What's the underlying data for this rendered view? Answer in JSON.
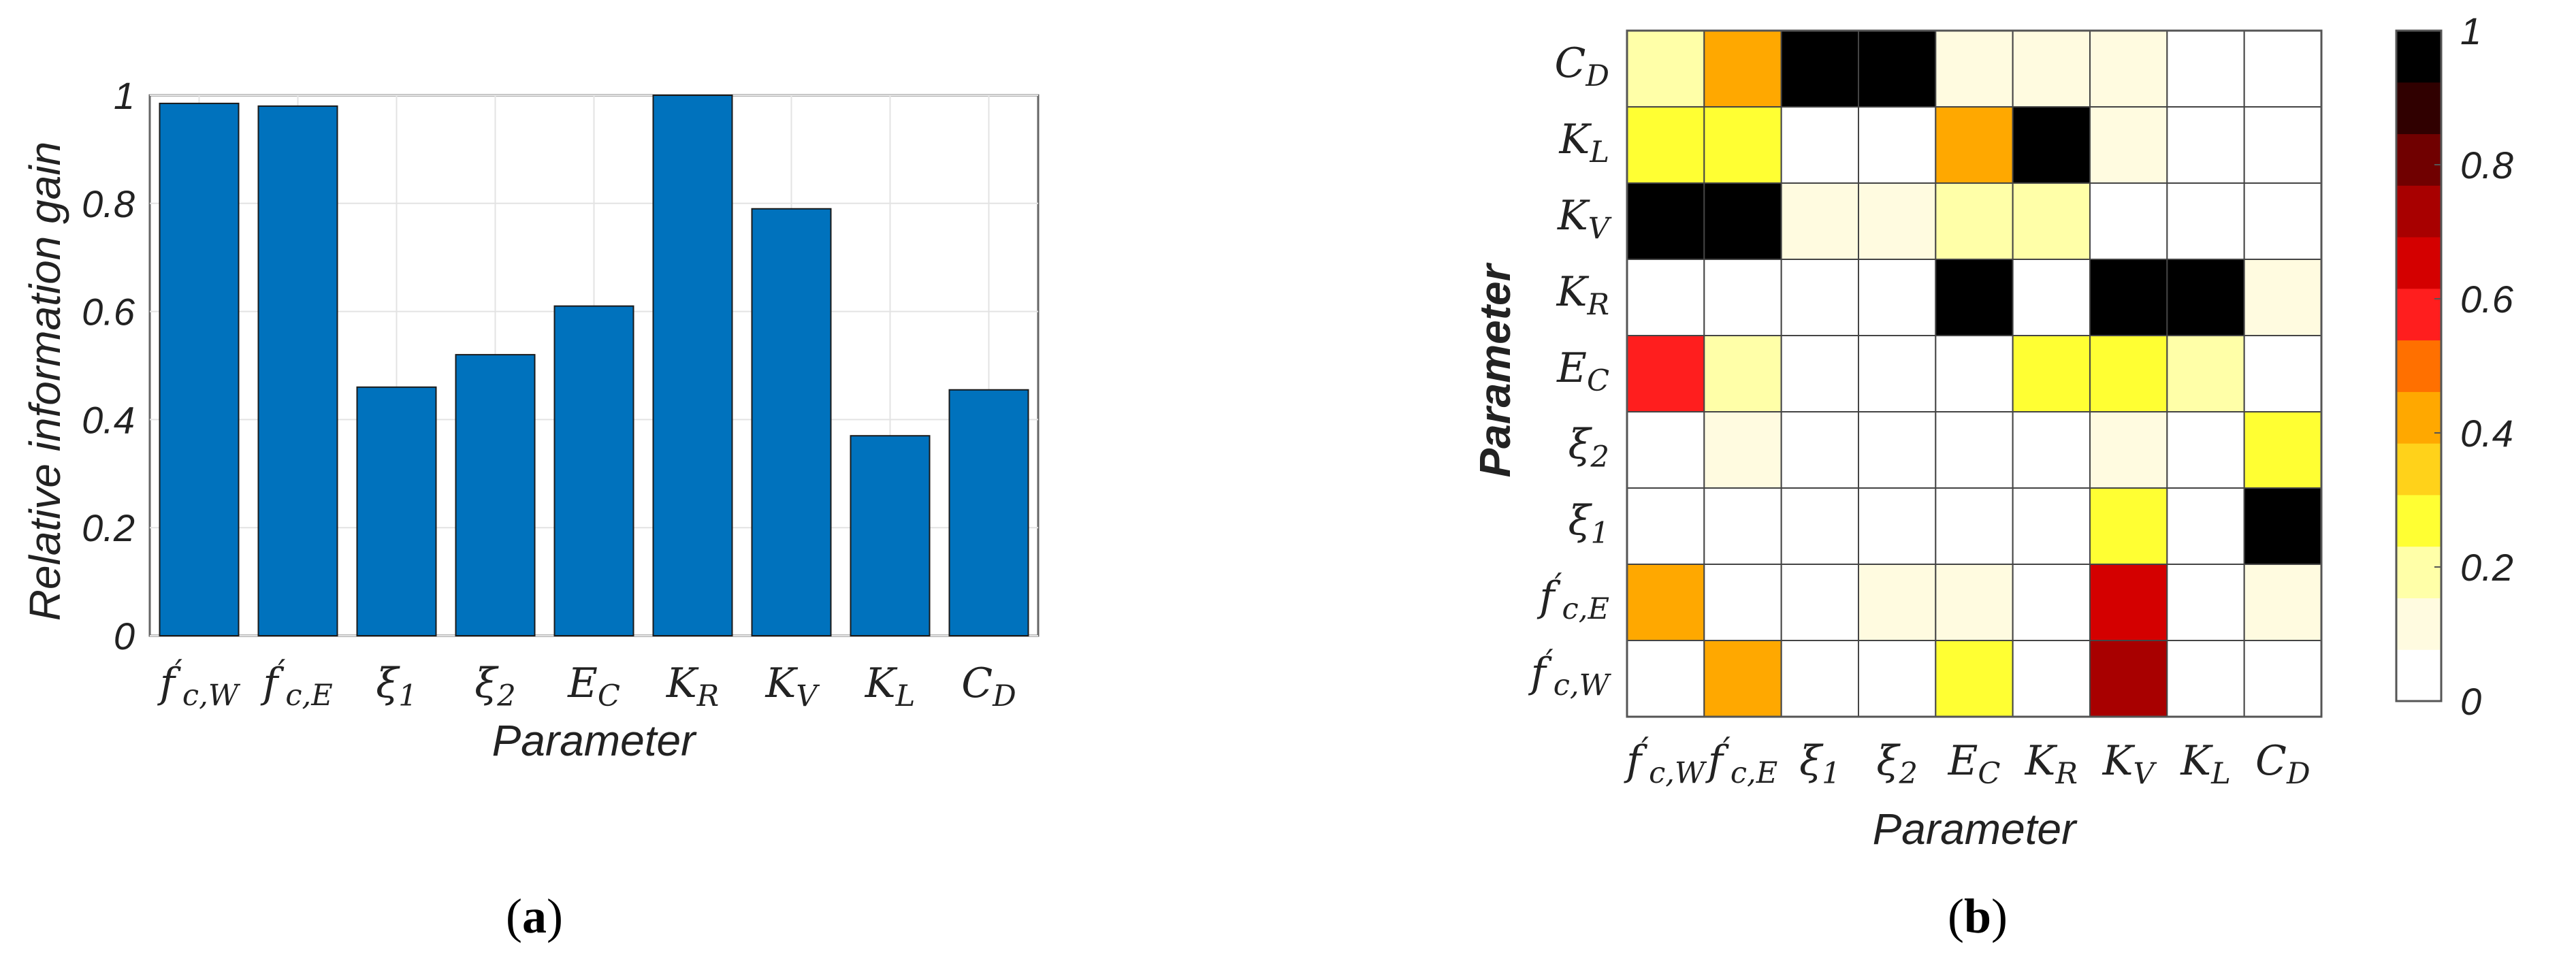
{
  "chart_data": [
    {
      "type": "bar",
      "panel_label": "a",
      "xlabel": "Parameter",
      "ylabel": "Relative information gain",
      "ylim": [
        0,
        1
      ],
      "yticks": [
        "0",
        "0.2",
        "0.4",
        "0.6",
        "0.8",
        "1"
      ],
      "grid": true,
      "bar_color": "#0072BD",
      "categories": [
        {
          "base": "f",
          "prime": true,
          "sub": "c,W"
        },
        {
          "base": "f",
          "prime": true,
          "sub": "c,E"
        },
        {
          "base": "ξ",
          "sub": "1"
        },
        {
          "base": "ξ",
          "sub": "2"
        },
        {
          "base": "E",
          "sub": "C"
        },
        {
          "base": "K",
          "sub": "R"
        },
        {
          "base": "K",
          "sub": "V"
        },
        {
          "base": "K",
          "sub": "L"
        },
        {
          "base": "C",
          "sub": "D"
        }
      ],
      "values": [
        0.985,
        0.98,
        0.46,
        0.52,
        0.61,
        1.0,
        0.79,
        0.37,
        0.455
      ]
    },
    {
      "type": "heatmap",
      "panel_label": "b",
      "xlabel": "Parameter",
      "ylabel": "Parameter",
      "x_categories": [
        {
          "base": "f",
          "prime": true,
          "sub": "c,W"
        },
        {
          "base": "f",
          "prime": true,
          "sub": "c,E"
        },
        {
          "base": "ξ",
          "sub": "1"
        },
        {
          "base": "ξ",
          "sub": "2"
        },
        {
          "base": "E",
          "sub": "C"
        },
        {
          "base": "K",
          "sub": "R"
        },
        {
          "base": "K",
          "sub": "V"
        },
        {
          "base": "K",
          "sub": "L"
        },
        {
          "base": "C",
          "sub": "D"
        }
      ],
      "y_categories_top_to_bottom": [
        {
          "base": "C",
          "sub": "D"
        },
        {
          "base": "K",
          "sub": "L"
        },
        {
          "base": "K",
          "sub": "V"
        },
        {
          "base": "K",
          "sub": "R"
        },
        {
          "base": "E",
          "sub": "C"
        },
        {
          "base": "ξ",
          "sub": "2"
        },
        {
          "base": "ξ",
          "sub": "1"
        },
        {
          "base": "f",
          "prime": true,
          "sub": "c,E"
        },
        {
          "base": "f",
          "prime": true,
          "sub": "c,W"
        }
      ],
      "values_top_to_bottom": [
        [
          0.2,
          0.4,
          1,
          1,
          0.15,
          0.15,
          0.15,
          0.05,
          0
        ],
        [
          0.3,
          0.25,
          0.02,
          0,
          0.4,
          1,
          0.15,
          0,
          0.05
        ],
        [
          1,
          1,
          0.15,
          0.15,
          0.2,
          0.2,
          0,
          0.05,
          0.05
        ],
        [
          0.05,
          0.05,
          0.05,
          0.05,
          1,
          0,
          1,
          1,
          0.15
        ],
        [
          0.6,
          0.2,
          0,
          0.02,
          0,
          0.25,
          0.25,
          0.2,
          0.05
        ],
        [
          0,
          0.15,
          0,
          0,
          0.02,
          0.02,
          0.15,
          0.05,
          0.3
        ],
        [
          0,
          0,
          0,
          0,
          0,
          0.02,
          0.3,
          0,
          1
        ],
        [
          0.4,
          0,
          0,
          0.1,
          0.1,
          0,
          0.65,
          0.05,
          0.1
        ],
        [
          0,
          0.45,
          0,
          0,
          0.25,
          0,
          0.7,
          0.05,
          0.05
        ]
      ],
      "colorbar": {
        "range": [
          0,
          1
        ],
        "tick_labels": [
          "0",
          "0.2",
          "0.4",
          "0.6",
          "0.8",
          "1"
        ],
        "colors_low_to_high": [
          "#ffffff",
          "#fffbe0",
          "#ffffa8",
          "#ffff33",
          "#ffd21a",
          "#ffa800",
          "#ff7000",
          "#ff1e1e",
          "#d40000",
          "#a80000",
          "#700000",
          "#300000",
          "#000000"
        ]
      }
    }
  ]
}
